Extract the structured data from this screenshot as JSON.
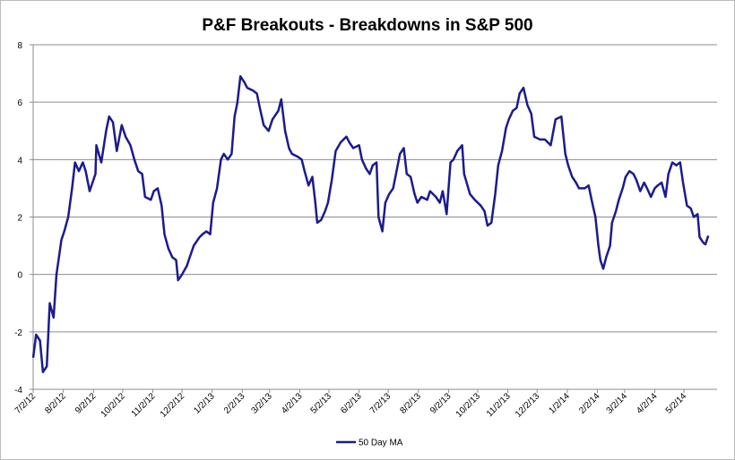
{
  "chart_data": {
    "type": "line",
    "title": "P&F Breakouts - Breakdowns in S&P 500",
    "x": [
      "7/2/12",
      "7/5/12",
      "7/9/12",
      "7/12/12",
      "7/16/12",
      "7/19/12",
      "7/23/12",
      "7/26/12",
      "7/31/12",
      "8/3/12",
      "8/7/12",
      "8/11/12",
      "8/14/12",
      "8/18/12",
      "8/22/12",
      "8/25/12",
      "8/29/12",
      "9/4/12",
      "9/5/12",
      "9/10/12",
      "9/15/12",
      "9/18/12",
      "9/22/12",
      "9/26/12",
      "10/1/12",
      "10/5/12",
      "10/10/12",
      "10/14/12",
      "10/18/12",
      "10/22/12",
      "10/25/12",
      "10/31/12",
      "11/3/12",
      "11/7/12",
      "11/11/12",
      "11/14/12",
      "11/18/12",
      "11/22/12",
      "11/26/12",
      "11/28/12",
      "12/2/12",
      "12/7/12",
      "12/10/12",
      "12/14/12",
      "12/20/12",
      "12/23/12",
      "12/27/12",
      "12/31/12",
      "1/3/13",
      "1/7/13",
      "1/11/13",
      "1/14/13",
      "1/18/13",
      "1/22/13",
      "1/25/13",
      "1/28/13",
      "1/31/13",
      "2/4/13",
      "2/7/13",
      "2/13/13",
      "2/17/13",
      "2/20/13",
      "2/24/13",
      "3/1/13",
      "3/5/13",
      "3/11/13",
      "3/14/13",
      "3/18/13",
      "3/22/13",
      "3/25/13",
      "3/31/13",
      "4/4/13",
      "4/7/13",
      "4/11/13",
      "4/15/13",
      "4/18/13",
      "4/20/13",
      "4/24/13",
      "4/28/13",
      "5/1/13",
      "5/5/13",
      "5/9/13",
      "5/14/13",
      "5/20/13",
      "5/23/13",
      "5/27/13",
      "6/2/13",
      "6/5/13",
      "6/9/13",
      "6/13/13",
      "6/16/13",
      "6/20/13",
      "6/22/13",
      "6/26/13",
      "6/29/13",
      "7/3/13",
      "7/7/13",
      "7/10/13",
      "7/14/13",
      "7/18/13",
      "7/21/13",
      "7/25/13",
      "7/29/13",
      "8/1/13",
      "8/5/13",
      "8/11/13",
      "8/14/13",
      "8/20/13",
      "8/24/13",
      "8/27/13",
      "8/31/13",
      "9/4/13",
      "9/7/13",
      "9/11/13",
      "9/16/13",
      "9/18/13",
      "9/24/13",
      "9/29/13",
      "10/5/13",
      "10/9/13",
      "10/12/13",
      "10/16/13",
      "10/20/13",
      "10/23/13",
      "10/27/13",
      "10/31/13",
      "11/3/13",
      "11/7/13",
      "11/11/13",
      "11/14/13",
      "11/18/13",
      "11/22/13",
      "11/26/13",
      "11/29/13",
      "12/5/13",
      "12/10/13",
      "12/16/13",
      "12/21/13",
      "12/27/13",
      "12/31/13",
      "1/3/14",
      "1/7/14",
      "1/11/14",
      "1/14/14",
      "1/20/14",
      "1/24/14",
      "1/27/14",
      "1/31/14",
      "2/3/14",
      "2/5/14",
      "2/8/14",
      "2/11/14",
      "2/15/14",
      "2/17/14",
      "2/21/14",
      "2/24/14",
      "2/28/14",
      "3/3/14",
      "3/7/14",
      "3/11/14",
      "3/14/14",
      "3/18/14",
      "3/22/14",
      "3/25/14",
      "3/29/14",
      "4/2/14",
      "4/5/14",
      "4/9/14",
      "4/13/14",
      "4/16/14",
      "4/20/14",
      "4/24/14",
      "4/28/14",
      "5/1/14",
      "5/5/14",
      "5/9/14",
      "5/12/14",
      "5/16/14",
      "5/18/14",
      "5/22/14",
      "5/24/14",
      "5/27/14"
    ],
    "series": [
      {
        "name": "50 Day MA",
        "color": "#1b1b8f",
        "values": [
          -2.9,
          -2.1,
          -2.3,
          -3.4,
          -3.2,
          -1.0,
          -1.5,
          0.0,
          1.2,
          1.5,
          2.0,
          3.0,
          3.9,
          3.6,
          3.9,
          3.6,
          2.9,
          3.5,
          4.5,
          3.9,
          5.0,
          5.5,
          5.3,
          4.3,
          5.2,
          4.8,
          4.5,
          4.0,
          3.6,
          3.5,
          2.7,
          2.6,
          2.9,
          3.0,
          2.4,
          1.4,
          0.9,
          0.6,
          0.5,
          -0.2,
          0.0,
          0.3,
          0.6,
          1.0,
          1.3,
          1.4,
          1.5,
          1.4,
          2.5,
          3.0,
          4.0,
          4.2,
          4.0,
          4.2,
          5.5,
          6.0,
          6.9,
          6.7,
          6.5,
          6.4,
          6.3,
          5.8,
          5.2,
          5.0,
          5.4,
          5.7,
          6.1,
          5.0,
          4.4,
          4.2,
          4.1,
          4.0,
          3.6,
          3.1,
          3.4,
          2.5,
          1.8,
          1.9,
          2.2,
          2.5,
          3.3,
          4.3,
          4.6,
          4.8,
          4.6,
          4.4,
          4.5,
          4.0,
          3.7,
          3.5,
          3.8,
          3.9,
          2.0,
          1.5,
          2.5,
          2.8,
          3.0,
          3.5,
          4.2,
          4.4,
          3.5,
          3.4,
          2.8,
          2.5,
          2.7,
          2.6,
          2.9,
          2.7,
          2.5,
          2.9,
          2.1,
          3.9,
          4.0,
          4.3,
          4.5,
          3.5,
          2.8,
          2.6,
          2.4,
          2.2,
          1.7,
          1.8,
          2.8,
          3.8,
          4.3,
          5.1,
          5.4,
          5.7,
          5.8,
          6.3,
          6.5,
          5.9,
          5.6,
          4.8,
          4.7,
          4.7,
          4.5,
          5.4,
          5.5,
          4.2,
          3.8,
          3.4,
          3.2,
          3.0,
          3.0,
          3.1,
          2.6,
          2.0,
          1.0,
          0.5,
          0.2,
          0.6,
          1.0,
          1.8,
          2.2,
          2.6,
          3.0,
          3.4,
          3.6,
          3.5,
          3.3,
          2.9,
          3.2,
          3.0,
          2.7,
          3.0,
          3.1,
          3.2,
          2.7,
          3.5,
          3.9,
          3.8,
          3.9,
          3.2,
          2.4,
          2.3,
          2.0,
          2.1,
          1.3,
          1.1,
          1.05,
          1.35
        ]
      }
    ],
    "xlim": [
      "7/2/12",
      "6/5/14"
    ],
    "xticks": [
      "7/2/12",
      "8/2/12",
      "9/2/12",
      "10/2/12",
      "11/2/12",
      "12/2/12",
      "1/2/13",
      "2/2/13",
      "3/2/13",
      "4/2/13",
      "5/2/13",
      "6/2/13",
      "7/2/13",
      "8/2/13",
      "9/2/13",
      "10/2/13",
      "11/2/13",
      "12/2/13",
      "1/2/14",
      "2/2/14",
      "3/2/14",
      "4/2/14",
      "5/2/14"
    ],
    "ylim": [
      -4,
      8
    ],
    "yticks": [
      -4,
      -2,
      0,
      2,
      4,
      6,
      8
    ],
    "grid": true,
    "legend": "bottom"
  }
}
